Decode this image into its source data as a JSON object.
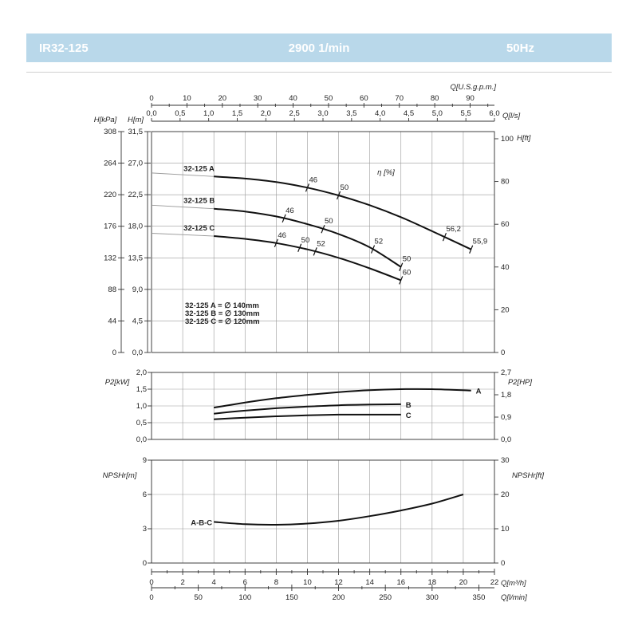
{
  "header": {
    "model": "IR32-125",
    "speed": "2900 1/min",
    "frequency": "50Hz"
  },
  "colors": {
    "banner": "#b9d8ea",
    "banner_text": "#ffffff",
    "curve": "#111111",
    "extension": "#9a9a9a",
    "grid": "#9a9a9a"
  },
  "chart_data": [
    {
      "type": "line",
      "panel": "head",
      "x_axes": {
        "m3h": {
          "ticks": [
            0,
            2,
            4,
            6,
            8,
            10,
            12,
            14,
            16,
            18,
            20,
            22
          ],
          "range": [
            0,
            22
          ],
          "label": "Q[m³/h]"
        },
        "ls": {
          "ticks": [
            "0,0",
            "0,5",
            "1,0",
            "1,5",
            "2,0",
            "2,5",
            "3,0",
            "3,5",
            "4,0",
            "4,5",
            "5,0",
            "5,5",
            "6,0"
          ],
          "range": [
            0,
            6
          ],
          "label": "Q[l/s]"
        },
        "usgpm": {
          "ticks": [
            0,
            10,
            20,
            30,
            40,
            50,
            60,
            70,
            80,
            90
          ],
          "range": [
            0,
            96.87
          ],
          "label": "Q[U.S.g.p.m.]"
        }
      },
      "y_axes": {
        "kpa": {
          "ticks": [
            "0",
            "44",
            "88",
            "132",
            "176",
            "220",
            "264",
            "308"
          ],
          "label": "H[kPa]"
        },
        "m": {
          "ticks": [
            "0,0",
            "4,5",
            "9,0",
            "13,5",
            "18,0",
            "22,5",
            "27,0",
            "31,5"
          ],
          "range": [
            0,
            31.5
          ],
          "label": "H[m]"
        },
        "ft": {
          "ticks": [
            "0",
            "20",
            "40",
            "60",
            "80",
            "100"
          ],
          "range": [
            0,
            103.35
          ],
          "label": "H[ft]"
        }
      },
      "efficiency_label": "η [%]",
      "series": [
        {
          "name": "32-125 A",
          "x": [
            4,
            6,
            8,
            10,
            12,
            14,
            16,
            18,
            20.5
          ],
          "y": [
            25.1,
            24.8,
            24.3,
            23.5,
            22.4,
            21.0,
            19.3,
            17.3,
            14.7
          ],
          "extension_x": [
            0,
            4
          ],
          "extension_y": [
            25.6,
            25.1
          ],
          "efficiency_marks": [
            {
              "q": 10,
              "label": "46"
            },
            {
              "q": 12,
              "label": "50"
            },
            {
              "q": 18.8,
              "label": "56,2"
            },
            {
              "q": 20.5,
              "label": "55,9"
            }
          ]
        },
        {
          "name": "32-125 B",
          "x": [
            4,
            6,
            8,
            10,
            12,
            14,
            16
          ],
          "y": [
            20.5,
            20.1,
            19.4,
            18.3,
            16.9,
            15.0,
            12.2
          ],
          "extension_x": [
            0,
            4
          ],
          "extension_y": [
            21.0,
            20.5
          ],
          "efficiency_marks": [
            {
              "q": 8.5,
              "label": "46"
            },
            {
              "q": 11.0,
              "label": "50"
            },
            {
              "q": 14.2,
              "label": "52"
            },
            {
              "q": 16.0,
              "label": "50"
            }
          ]
        },
        {
          "name": "32-125 C",
          "x": [
            4,
            6,
            8,
            10,
            12,
            14,
            16
          ],
          "y": [
            16.6,
            16.2,
            15.6,
            14.7,
            13.5,
            12.0,
            10.3
          ],
          "extension_x": [
            0,
            4
          ],
          "extension_y": [
            17.0,
            16.6
          ],
          "efficiency_marks": [
            {
              "q": 8.0,
              "label": "46"
            },
            {
              "q": 9.5,
              "label": "50"
            },
            {
              "q": 10.5,
              "label": "52"
            },
            {
              "q": 16.0,
              "label": "60"
            }
          ]
        }
      ],
      "legend": [
        {
          "label": "32-125 A = ∅ 140mm"
        },
        {
          "label": "32-125 B = ∅ 130mm"
        },
        {
          "label": "32-125 C = ∅ 120mm"
        }
      ],
      "grid": true
    },
    {
      "type": "line",
      "panel": "power",
      "y_axes": {
        "kw": {
          "ticks": [
            "0,0",
            "0,5",
            "1,0",
            "1,5",
            "2,0"
          ],
          "range": [
            0,
            2
          ],
          "label": "P2[kW]"
        },
        "hp": {
          "ticks": [
            "0,0",
            "0,9",
            "1,8",
            "2,7"
          ],
          "range": [
            0,
            2.7
          ],
          "label": "P2[HP]"
        }
      },
      "series": [
        {
          "name": "A",
          "x": [
            4,
            6,
            8,
            10,
            12,
            14,
            16,
            18,
            20.5
          ],
          "y": [
            0.95,
            1.1,
            1.23,
            1.33,
            1.41,
            1.47,
            1.5,
            1.5,
            1.46
          ]
        },
        {
          "name": "B",
          "x": [
            4,
            6,
            8,
            10,
            12,
            14,
            16
          ],
          "y": [
            0.77,
            0.86,
            0.93,
            0.98,
            1.02,
            1.04,
            1.05
          ]
        },
        {
          "name": "C",
          "x": [
            4,
            6,
            8,
            10,
            12,
            14,
            16
          ],
          "y": [
            0.6,
            0.65,
            0.69,
            0.72,
            0.74,
            0.74,
            0.74
          ]
        }
      ],
      "grid": true
    },
    {
      "type": "line",
      "panel": "npsh",
      "y_axes": {
        "m": {
          "ticks": [
            "0",
            "3",
            "6",
            "9"
          ],
          "range": [
            0,
            9
          ],
          "label": "NPSHr[m]"
        },
        "ft": {
          "ticks": [
            "0",
            "10",
            "20",
            "30"
          ],
          "range": [
            0,
            30
          ],
          "label": "NPSHr[ft]"
        }
      },
      "x_axes": {
        "m3h": {
          "ticks": [
            0,
            2,
            4,
            6,
            8,
            10,
            12,
            14,
            16,
            18,
            20,
            22
          ],
          "range": [
            0,
            22
          ],
          "label": "Q[m³/h]"
        },
        "lmin": {
          "ticks": [
            0,
            50,
            100,
            150,
            200,
            250,
            300,
            350
          ],
          "range": [
            0,
            366.67
          ],
          "label": "Q[l/min]"
        }
      },
      "series": [
        {
          "name": "A-B-C",
          "x": [
            4,
            6,
            8,
            10,
            12,
            14,
            16,
            18,
            20
          ],
          "y": [
            3.6,
            3.4,
            3.35,
            3.45,
            3.7,
            4.1,
            4.6,
            5.2,
            6.0
          ]
        }
      ],
      "grid": true
    }
  ]
}
